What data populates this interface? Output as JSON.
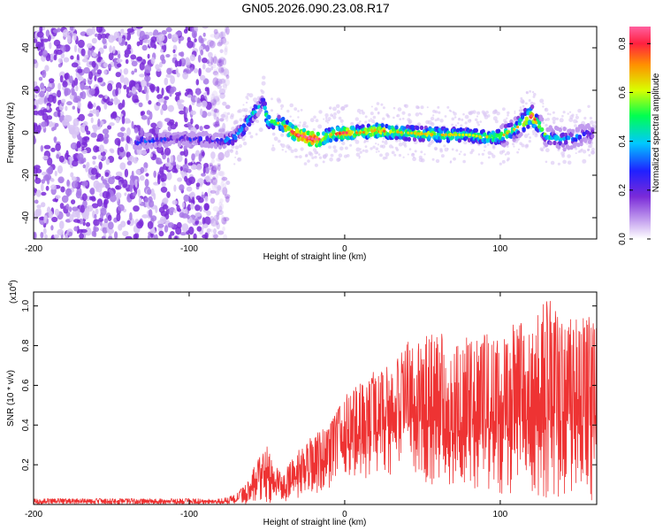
{
  "figure_title": "GN05.2026.090.23.08.R17",
  "chart_data": [
    {
      "type": "heatmap",
      "title": "GN05.2026.090.23.08.R17",
      "xlabel": "Height of straight line (km)",
      "ylabel": "Frequency (Hz)",
      "xlim": [
        -200,
        162
      ],
      "ylim": [
        -50,
        50
      ],
      "x_ticks": [
        -200,
        -100,
        0,
        100
      ],
      "x_tick_labels": [
        "-200",
        "-100",
        "0",
        "100"
      ],
      "y_ticks": [
        -40,
        -20,
        0,
        20,
        40
      ],
      "y_tick_labels": [
        "-40",
        "-20",
        "0",
        "20",
        "40"
      ],
      "colorbar": {
        "label": "Normalized spectral amplitude",
        "range": [
          0,
          0.87
        ],
        "ticks": [
          0.0,
          0.2,
          0.4,
          0.6,
          0.8
        ],
        "tick_labels": [
          "0.0",
          "0.2",
          "0.4",
          "0.6",
          "0.8"
        ],
        "colors": [
          "#ffffff",
          "#8a3bd6",
          "#3030ff",
          "#00c8ff",
          "#00ff40",
          "#ffff00",
          "#ff8000",
          "#ff2060"
        ]
      },
      "noise_region_x": [
        -200,
        -75
      ],
      "ridge": {
        "x": [
          -130,
          -110,
          -90,
          -80,
          -72,
          -65,
          -60,
          -55,
          -52,
          -50,
          -45,
          -40,
          -35,
          -30,
          -25,
          -20,
          -15,
          -10,
          0,
          10,
          20,
          40,
          60,
          80,
          90,
          100,
          110,
          115,
          120,
          125,
          130,
          140,
          150,
          160
        ],
        "frequency": [
          -4,
          -3,
          -3,
          -4,
          -3,
          2,
          8,
          12,
          15,
          6,
          5,
          4,
          1,
          -1,
          -2,
          -3,
          -3,
          -1,
          0,
          0,
          1,
          0,
          -1,
          -1,
          -2,
          -2,
          2,
          5,
          8,
          4,
          -2,
          -3,
          -2,
          0
        ],
        "amplitude": [
          0.3,
          0.25,
          0.25,
          0.3,
          0.4,
          0.45,
          0.5,
          0.4,
          0.35,
          0.55,
          0.5,
          0.6,
          0.7,
          0.8,
          0.8,
          0.85,
          0.7,
          0.6,
          0.75,
          0.6,
          0.7,
          0.55,
          0.6,
          0.5,
          0.55,
          0.6,
          0.55,
          0.7,
          0.75,
          0.6,
          0.45,
          0.4,
          0.35,
          0.3
        ]
      }
    },
    {
      "type": "line",
      "xlabel": "Height of straight line (km)",
      "ylabel": "SNR (10 * v/v)",
      "y_scale_label": "(x10",
      "y_scale_exponent": "4",
      "y_scale_suffix": ")",
      "xlim": [
        -200,
        162
      ],
      "ylim": [
        0,
        1.07
      ],
      "x_ticks": [
        -200,
        -100,
        0,
        100
      ],
      "x_tick_labels": [
        "-200",
        "-100",
        "0",
        "100"
      ],
      "y_ticks": [
        0.2,
        0.4,
        0.6,
        0.8,
        1.0
      ],
      "y_tick_labels": [
        "0.2",
        "0.4",
        "0.6",
        "0.8",
        "1.0"
      ],
      "series": [
        {
          "name": "SNR",
          "color": "#ee3333",
          "envelope_x": [
            -200,
            -150,
            -100,
            -80,
            -70,
            -62,
            -55,
            -50,
            -45,
            -40,
            -35,
            -30,
            -20,
            -10,
            0,
            10,
            20,
            30,
            40,
            50,
            60,
            70,
            80,
            90,
            100,
            110,
            120,
            130,
            140,
            150,
            160
          ],
          "envelope_min": [
            0.0,
            0.0,
            0.0,
            0.0,
            0.0,
            0.0,
            0.02,
            0.01,
            0.0,
            0.0,
            0.02,
            0.03,
            0.05,
            0.08,
            0.1,
            0.12,
            0.15,
            0.15,
            0.12,
            0.1,
            0.1,
            0.08,
            0.06,
            0.05,
            0.05,
            0.05,
            0.04,
            0.03,
            0.03,
            0.02,
            0.02
          ],
          "envelope_max": [
            0.03,
            0.03,
            0.03,
            0.03,
            0.05,
            0.12,
            0.25,
            0.3,
            0.2,
            0.15,
            0.22,
            0.28,
            0.35,
            0.4,
            0.55,
            0.62,
            0.68,
            0.7,
            0.82,
            0.86,
            0.88,
            0.83,
            0.85,
            0.86,
            0.84,
            0.93,
            0.9,
            1.06,
            0.92,
            0.96,
            0.95
          ]
        }
      ]
    }
  ]
}
